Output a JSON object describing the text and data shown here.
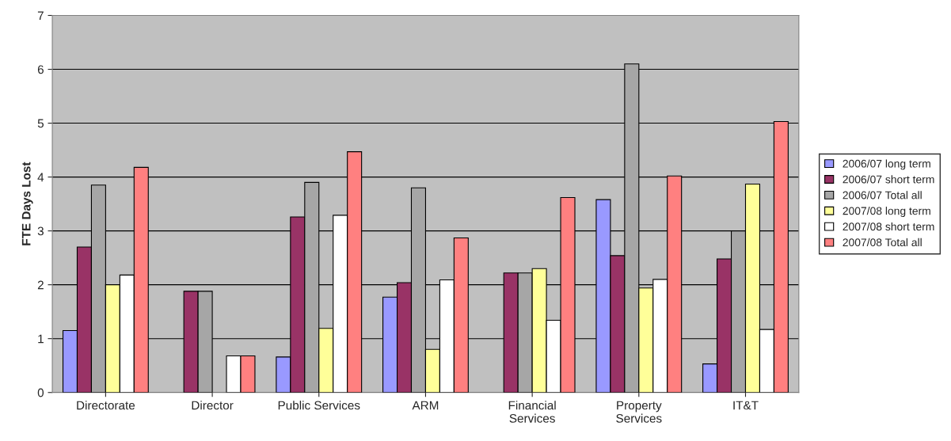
{
  "chart_data": {
    "type": "bar",
    "ylabel": "FTE Days Lost",
    "categories": [
      "Directorate",
      "Director",
      "Public Services",
      "ARM",
      "Financial\nServices",
      "Property\nServices",
      "IT&T"
    ],
    "series": [
      {
        "name": "2006/07 long term",
        "color": "#9999ff",
        "values": [
          1.15,
          null,
          0.66,
          1.77,
          null,
          3.58,
          0.53
        ]
      },
      {
        "name": "2006/07 short term",
        "color": "#993366",
        "values": [
          2.7,
          1.88,
          3.26,
          2.04,
          2.22,
          2.54,
          2.48
        ]
      },
      {
        "name": "2006/07 Total all",
        "color": "#a6a6a6",
        "values": [
          3.85,
          1.88,
          3.9,
          3.8,
          2.22,
          6.1,
          3.0
        ]
      },
      {
        "name": "2007/08 long term",
        "color": "#ffff99",
        "values": [
          2.0,
          null,
          1.19,
          0.8,
          2.3,
          1.94,
          3.87
        ]
      },
      {
        "name": "2007/08 short term",
        "color": "#ffffff",
        "values": [
          2.18,
          0.68,
          3.29,
          2.09,
          1.34,
          2.1,
          1.17
        ]
      },
      {
        "name": "2007/08 Total all",
        "color": "#ff8080",
        "values": [
          4.18,
          0.68,
          4.47,
          2.87,
          3.62,
          4.02,
          5.03
        ]
      }
    ],
    "ylim": [
      0,
      7
    ],
    "yticks": [
      0,
      1,
      2,
      3,
      4,
      5,
      6,
      7
    ],
    "grid": "y",
    "legend": "right"
  }
}
